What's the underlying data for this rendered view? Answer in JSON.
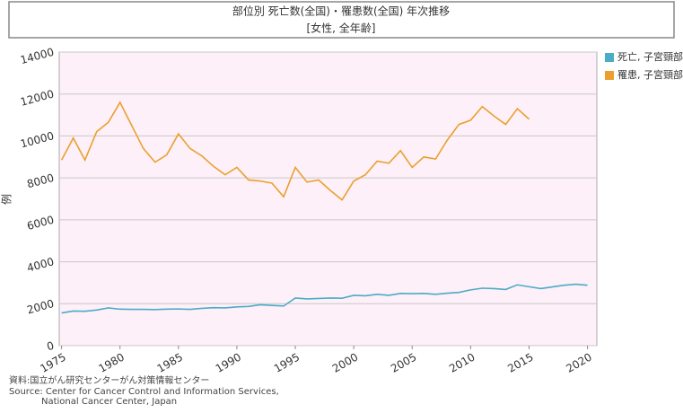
{
  "chart_data": {
    "type": "line",
    "title": "部位別 死亡数(全国)・罹患数(全国) 年次推移",
    "subtitle": "[女性, 全年齢]",
    "y_label": "例",
    "source": [
      "資料:国立がん研究センターがん対策情報センター",
      "Source: Center for Cancer Control and Information Services,",
      "National Cancer Center, Japan"
    ],
    "x": [
      1975,
      1976,
      1977,
      1978,
      1979,
      1980,
      1981,
      1982,
      1983,
      1984,
      1985,
      1986,
      1987,
      1988,
      1989,
      1990,
      1991,
      1992,
      1993,
      1994,
      1995,
      1996,
      1997,
      1998,
      1999,
      2000,
      2001,
      2002,
      2003,
      2004,
      2005,
      2006,
      2007,
      2008,
      2009,
      2010,
      2011,
      2012,
      2013,
      2014,
      2015,
      2016,
      2017,
      2018,
      2019,
      2020
    ],
    "series": [
      {
        "name": "死亡, 子宮頸部",
        "color": "#4bacc6",
        "values": [
          1560,
          1650,
          1640,
          1700,
          1800,
          1740,
          1730,
          1730,
          1720,
          1740,
          1750,
          1730,
          1780,
          1810,
          1800,
          1850,
          1870,
          1950,
          1920,
          1890,
          2270,
          2230,
          2250,
          2270,
          2260,
          2400,
          2380,
          2450,
          2400,
          2490,
          2480,
          2490,
          2450,
          2500,
          2540,
          2660,
          2740,
          2720,
          2680,
          2900,
          2810,
          2720,
          2800,
          2880,
          2930,
          2880
        ]
      },
      {
        "name": "罹患, 子宮頸部",
        "color": "#eba02e",
        "values": [
          8850,
          9900,
          8850,
          10200,
          10650,
          11600,
          10500,
          9400,
          8750,
          9100,
          10100,
          9400,
          9050,
          8550,
          8150,
          8500,
          7900,
          7850,
          7750,
          7100,
          8500,
          7800,
          7900,
          7400,
          6950,
          7850,
          8150,
          8800,
          8700,
          9300,
          8500,
          9000,
          8900,
          9800,
          10550,
          10750,
          11400,
          10950,
          10550,
          11300,
          10800,
          null,
          null,
          null,
          null,
          null
        ]
      }
    ],
    "xlim": [
      1974.8,
      2020.8
    ],
    "xticks": [
      1975,
      1980,
      1985,
      1990,
      1995,
      2000,
      2005,
      2010,
      2015,
      2020
    ],
    "ylim": [
      0,
      14000
    ],
    "yticks": [
      0,
      2000,
      4000,
      6000,
      8000,
      10000,
      12000,
      14000
    ],
    "grid": true,
    "legend": "right"
  }
}
